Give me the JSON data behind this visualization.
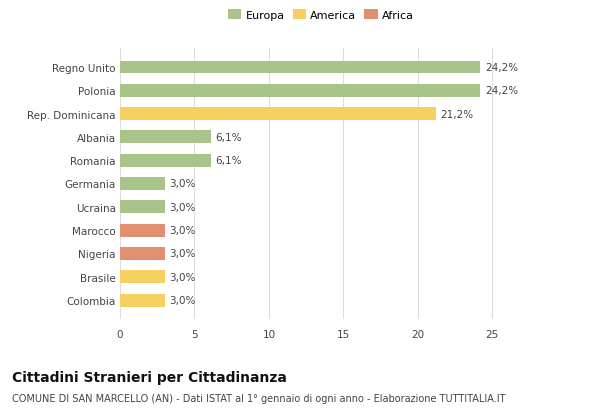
{
  "categories": [
    "Colombia",
    "Brasile",
    "Nigeria",
    "Marocco",
    "Ucraina",
    "Germania",
    "Romania",
    "Albania",
    "Rep. Dominicana",
    "Polonia",
    "Regno Unito"
  ],
  "values": [
    3.0,
    3.0,
    3.0,
    3.0,
    3.0,
    3.0,
    6.1,
    6.1,
    21.2,
    24.2,
    24.2
  ],
  "labels": [
    "3,0%",
    "3,0%",
    "3,0%",
    "3,0%",
    "3,0%",
    "3,0%",
    "6,1%",
    "6,1%",
    "21,2%",
    "24,2%",
    "24,2%"
  ],
  "colors": [
    "#f5d060",
    "#f5d060",
    "#e09070",
    "#e09070",
    "#a8c48a",
    "#a8c48a",
    "#a8c48a",
    "#a8c48a",
    "#f5d060",
    "#a8c48a",
    "#a8c48a"
  ],
  "legend": [
    {
      "label": "Europa",
      "color": "#a8c48a"
    },
    {
      "label": "America",
      "color": "#f5d060"
    },
    {
      "label": "Africa",
      "color": "#e09070"
    }
  ],
  "xlim": [
    0,
    27
  ],
  "xticks": [
    0,
    5,
    10,
    15,
    20,
    25
  ],
  "title": "Cittadini Stranieri per Cittadinanza",
  "subtitle": "COMUNE DI SAN MARCELLO (AN) - Dati ISTAT al 1° gennaio di ogni anno - Elaborazione TUTTITALIA.IT",
  "title_fontsize": 10,
  "subtitle_fontsize": 7,
  "bar_height": 0.55,
  "label_fontsize": 7.5,
  "ytick_fontsize": 7.5,
  "xtick_fontsize": 7.5,
  "legend_fontsize": 8,
  "background_color": "#ffffff",
  "grid_color": "#dddddd"
}
